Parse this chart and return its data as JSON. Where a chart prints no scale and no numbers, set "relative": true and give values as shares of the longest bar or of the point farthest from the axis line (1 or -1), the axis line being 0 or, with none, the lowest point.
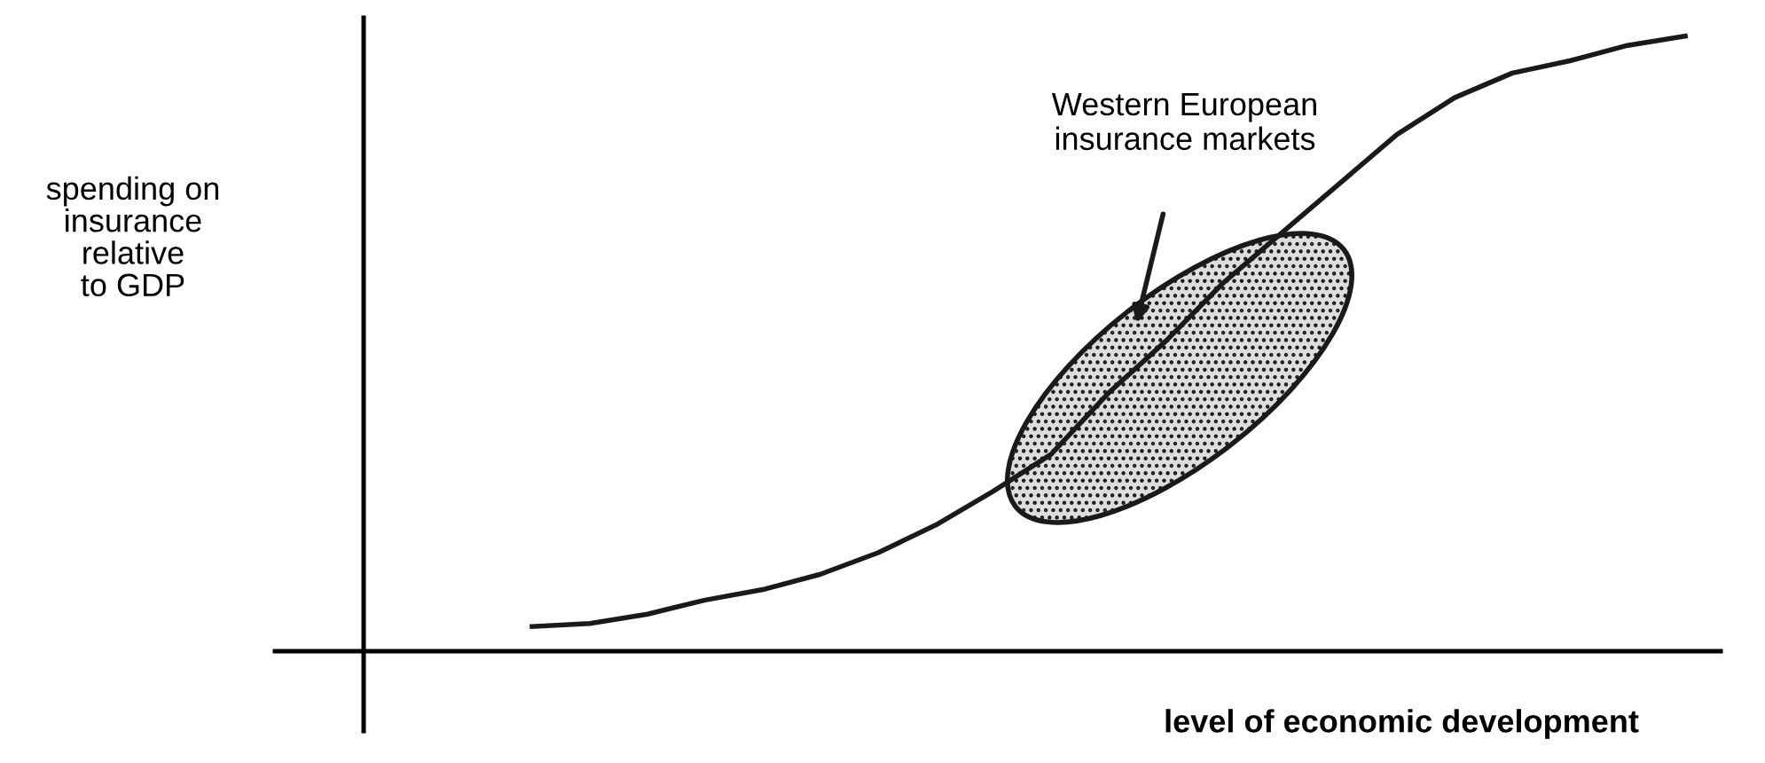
{
  "chart_data": {
    "type": "line",
    "relative": true,
    "xlabel": "level of economic development",
    "categories": [
      null,
      null,
      null,
      null,
      null,
      null,
      null,
      null,
      null,
      null,
      null,
      null,
      null,
      null,
      null,
      null,
      null,
      null,
      null,
      null,
      null
    ],
    "series": [
      {
        "color": "#1a1a1a",
        "values": [
          0.04,
          0.045,
          0.06,
          0.083,
          0.1,
          0.125,
          0.16,
          0.205,
          0.26,
          0.32,
          0.42,
          0.505,
          0.6,
          0.68,
          0.76,
          0.84,
          0.9,
          0.94,
          0.96,
          0.985,
          1.0
        ]
      }
    ],
    "annotations": [
      "Western European\ninsurance markets",
      "spending on\ninsurance\nrelative\nto GDP"
    ],
    "grid": false,
    "legend": false,
    "marker": "none",
    "line_style": "solid"
  }
}
